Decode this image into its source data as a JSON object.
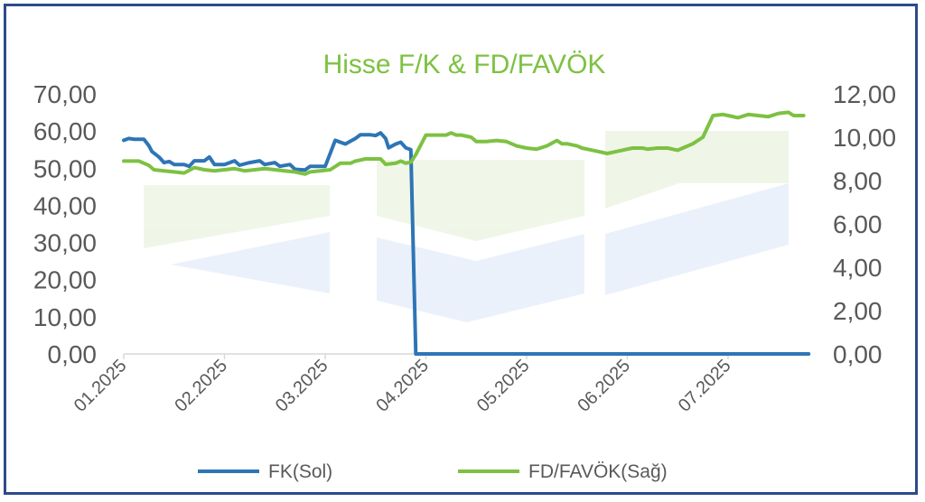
{
  "chart_data": {
    "type": "line",
    "title": "Hisse F/K & FD/FAVÖK",
    "title_color": "#7dc142",
    "x_tick_labels": [
      "01.2025",
      "02.2025",
      "03.2025",
      "04.2025",
      "05.2025",
      "06.2025",
      "07.2025"
    ],
    "y_left": {
      "lim": [
        0,
        70
      ],
      "ticks": [
        "0,00",
        "10,00",
        "20,00",
        "30,00",
        "40,00",
        "50,00",
        "60,00",
        "70,00"
      ]
    },
    "y_right": {
      "lim": [
        0,
        12
      ],
      "ticks": [
        "0,00",
        "2,00",
        "4,00",
        "6,00",
        "8,00",
        "10,00",
        "12,00"
      ]
    },
    "grid": false,
    "legend_position": "bottom",
    "series": [
      {
        "name": "FK(Sol)",
        "axis": "left",
        "color": "#2e75b6",
        "points": [
          [
            0.0,
            57.5
          ],
          [
            0.05,
            58.0
          ],
          [
            0.1,
            57.8
          ],
          [
            0.2,
            57.8
          ],
          [
            0.25,
            56.0
          ],
          [
            0.28,
            54.5
          ],
          [
            0.35,
            53.0
          ],
          [
            0.4,
            51.5
          ],
          [
            0.45,
            51.8
          ],
          [
            0.5,
            51.0
          ],
          [
            0.6,
            51.0
          ],
          [
            0.65,
            50.5
          ],
          [
            0.7,
            52.0
          ],
          [
            0.8,
            52.0
          ],
          [
            0.85,
            53.0
          ],
          [
            0.9,
            51.0
          ],
          [
            1.0,
            51.0
          ],
          [
            1.1,
            52.0
          ],
          [
            1.15,
            50.8
          ],
          [
            1.25,
            51.5
          ],
          [
            1.35,
            52.0
          ],
          [
            1.4,
            51.0
          ],
          [
            1.5,
            51.5
          ],
          [
            1.55,
            50.5
          ],
          [
            1.65,
            51.0
          ],
          [
            1.7,
            49.7
          ],
          [
            1.8,
            49.5
          ],
          [
            1.85,
            50.5
          ],
          [
            1.95,
            50.5
          ],
          [
            2.0,
            50.5
          ],
          [
            2.05,
            54.0
          ],
          [
            2.1,
            57.5
          ],
          [
            2.15,
            57.0
          ],
          [
            2.2,
            56.5
          ],
          [
            2.3,
            58.0
          ],
          [
            2.35,
            59.0
          ],
          [
            2.45,
            59.0
          ],
          [
            2.5,
            58.8
          ],
          [
            2.55,
            59.5
          ],
          [
            2.6,
            58.0
          ],
          [
            2.63,
            55.5
          ],
          [
            2.7,
            56.5
          ],
          [
            2.75,
            57.0
          ],
          [
            2.8,
            55.5
          ],
          [
            2.85,
            55.0
          ],
          [
            2.9,
            0.0
          ],
          [
            3.0,
            0.0
          ],
          [
            6.8,
            0.0
          ]
        ]
      },
      {
        "name": "FD/FAVÖK(Sağ)",
        "axis": "right",
        "color": "#7dc142",
        "points": [
          [
            0.0,
            8.9
          ],
          [
            0.15,
            8.9
          ],
          [
            0.25,
            8.7
          ],
          [
            0.3,
            8.5
          ],
          [
            0.4,
            8.45
          ],
          [
            0.5,
            8.4
          ],
          [
            0.6,
            8.35
          ],
          [
            0.7,
            8.6
          ],
          [
            0.8,
            8.5
          ],
          [
            0.9,
            8.45
          ],
          [
            1.0,
            8.5
          ],
          [
            1.1,
            8.55
          ],
          [
            1.2,
            8.45
          ],
          [
            1.3,
            8.5
          ],
          [
            1.4,
            8.55
          ],
          [
            1.5,
            8.5
          ],
          [
            1.6,
            8.45
          ],
          [
            1.7,
            8.4
          ],
          [
            1.8,
            8.3
          ],
          [
            1.85,
            8.4
          ],
          [
            1.95,
            8.45
          ],
          [
            2.05,
            8.5
          ],
          [
            2.15,
            8.8
          ],
          [
            2.25,
            8.8
          ],
          [
            2.3,
            8.9
          ],
          [
            2.4,
            9.0
          ],
          [
            2.5,
            9.0
          ],
          [
            2.55,
            9.0
          ],
          [
            2.6,
            8.75
          ],
          [
            2.7,
            8.8
          ],
          [
            2.75,
            8.9
          ],
          [
            2.8,
            8.8
          ],
          [
            2.85,
            8.85
          ],
          [
            2.9,
            9.2
          ],
          [
            3.0,
            10.1
          ],
          [
            3.1,
            10.1
          ],
          [
            3.2,
            10.1
          ],
          [
            3.25,
            10.2
          ],
          [
            3.3,
            10.1
          ],
          [
            3.35,
            10.1
          ],
          [
            3.45,
            10.0
          ],
          [
            3.5,
            9.8
          ],
          [
            3.6,
            9.8
          ],
          [
            3.7,
            9.85
          ],
          [
            3.8,
            9.8
          ],
          [
            3.9,
            9.6
          ],
          [
            4.0,
            9.5
          ],
          [
            4.1,
            9.45
          ],
          [
            4.2,
            9.6
          ],
          [
            4.3,
            9.85
          ],
          [
            4.35,
            9.7
          ],
          [
            4.4,
            9.7
          ],
          [
            4.5,
            9.6
          ],
          [
            4.55,
            9.5
          ],
          [
            4.6,
            9.45
          ],
          [
            4.7,
            9.35
          ],
          [
            4.8,
            9.25
          ],
          [
            4.85,
            9.3
          ],
          [
            4.95,
            9.4
          ],
          [
            5.05,
            9.5
          ],
          [
            5.15,
            9.5
          ],
          [
            5.2,
            9.45
          ],
          [
            5.3,
            9.5
          ],
          [
            5.4,
            9.5
          ],
          [
            5.5,
            9.4
          ],
          [
            5.55,
            9.5
          ],
          [
            5.65,
            9.7
          ],
          [
            5.75,
            10.0
          ],
          [
            5.85,
            11.0
          ],
          [
            5.95,
            11.05
          ],
          [
            6.0,
            11.0
          ],
          [
            6.1,
            10.9
          ],
          [
            6.2,
            11.05
          ],
          [
            6.3,
            11.0
          ],
          [
            6.4,
            10.95
          ],
          [
            6.5,
            11.1
          ],
          [
            6.6,
            11.15
          ],
          [
            6.65,
            11.0
          ],
          [
            6.75,
            11.0
          ]
        ]
      }
    ]
  }
}
